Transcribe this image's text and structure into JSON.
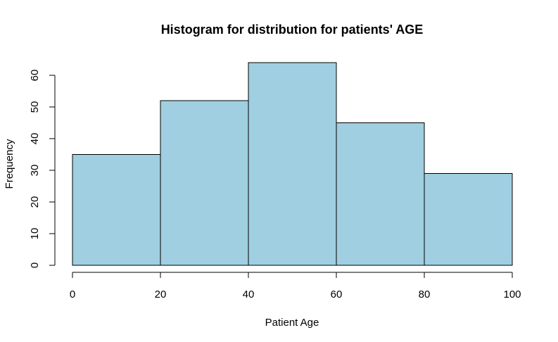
{
  "chart_data": {
    "type": "bar",
    "title": "Histogram for distribution for patients' AGE",
    "xlabel": "Patient Age",
    "ylabel": "Frequency",
    "bins": [
      {
        "x0": 0,
        "x1": 20,
        "count": 35
      },
      {
        "x0": 20,
        "x1": 40,
        "count": 52
      },
      {
        "x0": 40,
        "x1": 60,
        "count": 64
      },
      {
        "x0": 60,
        "x1": 80,
        "count": 45
      },
      {
        "x0": 80,
        "x1": 100,
        "count": 29
      }
    ],
    "xlim": [
      0,
      100
    ],
    "ylim": [
      0,
      64
    ],
    "xticks": [
      0,
      20,
      40,
      60,
      80,
      100
    ],
    "yticks": [
      0,
      10,
      20,
      30,
      40,
      50,
      60
    ],
    "grid": false,
    "legend": "none",
    "bar_fill": "#9fcfe1",
    "bar_stroke": "#000000"
  }
}
